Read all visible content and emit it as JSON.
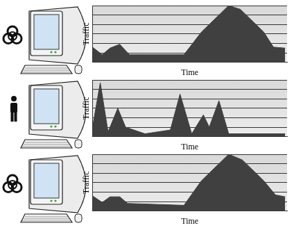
{
  "chart_data": [
    {
      "type": "area",
      "x_label": "Time",
      "y_label": "Traffic",
      "tick_labels": false,
      "grid": true,
      "color": "#404040",
      "xlim": [
        0,
        100
      ],
      "ylim": [
        0,
        6
      ],
      "yticks": [
        0,
        1,
        2,
        3,
        4,
        5,
        6
      ],
      "x": [
        0,
        5,
        9,
        14,
        19,
        47,
        56,
        70,
        76,
        88,
        93,
        99
      ],
      "values": [
        1.6,
        0.8,
        1.5,
        1.9,
        0.8,
        0.8,
        3.2,
        6.0,
        5.6,
        3.2,
        1.6,
        1.5
      ]
    },
    {
      "type": "area",
      "x_label": "Time",
      "y_label": "Traffic",
      "tick_labels": false,
      "grid": true,
      "color": "#404040",
      "xlim": [
        0,
        100
      ],
      "ylim": [
        0,
        6
      ],
      "yticks": [
        0,
        1,
        2,
        3,
        4,
        5,
        6
      ],
      "x": [
        0,
        4,
        8,
        13,
        17,
        27,
        40,
        45,
        51,
        57,
        60,
        65,
        70,
        99
      ],
      "values": [
        1.0,
        5.7,
        0.5,
        3.0,
        1.0,
        0.3,
        0.7,
        4.5,
        0.3,
        2.3,
        1.0,
        3.8,
        0.3,
        0.3
      ]
    },
    {
      "type": "area",
      "x_label": "Time",
      "y_label": "Traffic",
      "tick_labels": false,
      "grid": true,
      "color": "#404040",
      "xlim": [
        0,
        100
      ],
      "ylim": [
        0,
        6
      ],
      "yticks": [
        0,
        1,
        2,
        3,
        4,
        5,
        6
      ],
      "x": [
        0,
        5,
        9,
        14,
        18,
        47,
        56,
        70,
        77,
        88,
        94,
        99
      ],
      "values": [
        1.6,
        0.9,
        1.5,
        1.5,
        0.8,
        0.6,
        3.2,
        6.0,
        5.4,
        3.2,
        1.7,
        1.5
      ]
    }
  ]
}
